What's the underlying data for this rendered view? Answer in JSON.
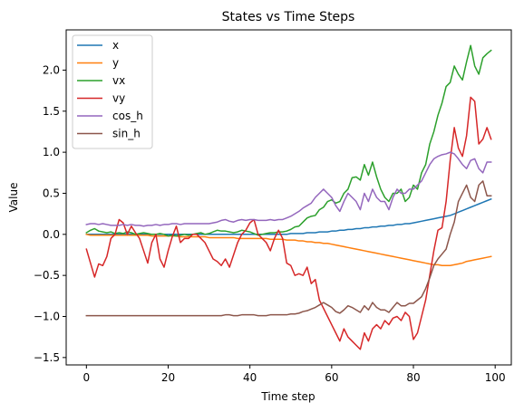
{
  "chart_data": {
    "type": "line",
    "title": "States vs Time Steps",
    "xlabel": "Time step",
    "ylabel": "Value",
    "xlim": [
      -4.95,
      103.95
    ],
    "ylim": [
      -1.59,
      2.49
    ],
    "xticks": [
      0,
      20,
      40,
      60,
      80,
      100
    ],
    "yticks": [
      -1.5,
      -1.0,
      -0.5,
      0.0,
      0.5,
      1.0,
      1.5,
      2.0
    ],
    "ytick_labels": [
      "−1.5",
      "−1.0",
      "−0.5",
      "0.0",
      "0.5",
      "1.0",
      "1.5",
      "2.0"
    ],
    "grid": false,
    "legend_position": "top-left",
    "series": [
      {
        "name": "x",
        "color": "#1f77b4",
        "values": [
          0.0,
          0.0,
          0.0,
          0.0,
          0.0,
          0.0,
          0.0,
          0.0,
          0.0,
          0.0,
          0.0,
          0.0,
          0.0,
          0.0,
          0.0,
          0.0,
          0.0,
          0.0,
          0.0,
          0.0,
          0.0,
          0.0,
          0.0,
          0.0,
          0.0,
          0.0,
          0.0,
          0.0,
          0.0,
          0.0,
          0.0,
          0.0,
          0.0,
          0.0,
          0.0,
          0.0,
          0.0,
          0.0,
          0.0,
          0.0,
          0.0,
          0.0,
          0.0,
          0.0,
          0.0,
          0.0,
          0.0,
          0.0,
          0.0,
          0.0,
          0.01,
          0.01,
          0.01,
          0.01,
          0.02,
          0.02,
          0.02,
          0.03,
          0.03,
          0.03,
          0.04,
          0.04,
          0.05,
          0.05,
          0.06,
          0.06,
          0.07,
          0.07,
          0.08,
          0.08,
          0.09,
          0.09,
          0.1,
          0.1,
          0.11,
          0.11,
          0.12,
          0.12,
          0.13,
          0.13,
          0.14,
          0.15,
          0.16,
          0.17,
          0.18,
          0.19,
          0.2,
          0.21,
          0.22,
          0.23,
          0.25,
          0.27,
          0.29,
          0.31,
          0.33,
          0.35,
          0.37,
          0.39,
          0.41,
          0.43
        ]
      },
      {
        "name": "y",
        "color": "#ff7f0e",
        "values": [
          0.0,
          -0.01,
          -0.01,
          -0.01,
          -0.01,
          -0.01,
          -0.01,
          -0.01,
          -0.01,
          -0.01,
          -0.01,
          -0.01,
          -0.01,
          -0.01,
          -0.01,
          -0.01,
          -0.02,
          -0.02,
          -0.02,
          -0.02,
          -0.02,
          -0.02,
          -0.02,
          -0.03,
          -0.03,
          -0.03,
          -0.03,
          -0.03,
          -0.03,
          -0.03,
          -0.04,
          -0.04,
          -0.04,
          -0.04,
          -0.04,
          -0.04,
          -0.04,
          -0.05,
          -0.05,
          -0.05,
          -0.05,
          -0.05,
          -0.05,
          -0.05,
          -0.05,
          -0.06,
          -0.06,
          -0.06,
          -0.06,
          -0.07,
          -0.07,
          -0.07,
          -0.08,
          -0.08,
          -0.09,
          -0.09,
          -0.1,
          -0.1,
          -0.11,
          -0.11,
          -0.12,
          -0.13,
          -0.14,
          -0.15,
          -0.16,
          -0.17,
          -0.18,
          -0.19,
          -0.2,
          -0.21,
          -0.22,
          -0.23,
          -0.24,
          -0.25,
          -0.26,
          -0.27,
          -0.28,
          -0.29,
          -0.3,
          -0.31,
          -0.32,
          -0.33,
          -0.34,
          -0.35,
          -0.36,
          -0.37,
          -0.37,
          -0.38,
          -0.38,
          -0.38,
          -0.37,
          -0.36,
          -0.35,
          -0.33,
          -0.32,
          -0.31,
          -0.3,
          -0.29,
          -0.28,
          -0.27
        ]
      },
      {
        "name": "vx",
        "color": "#2ca02c",
        "values": [
          0.02,
          0.05,
          0.07,
          0.04,
          0.03,
          0.02,
          0.03,
          0.01,
          0.02,
          0.01,
          0.03,
          0.02,
          0.0,
          0.01,
          0.02,
          0.01,
          0.0,
          0.0,
          0.01,
          0.0,
          -0.02,
          -0.01,
          -0.02,
          -0.01,
          0.0,
          -0.01,
          0.0,
          0.01,
          0.02,
          0.0,
          0.01,
          0.03,
          0.05,
          0.04,
          0.04,
          0.03,
          0.02,
          0.03,
          0.05,
          0.04,
          0.03,
          0.01,
          -0.01,
          0.0,
          0.01,
          0.02,
          0.02,
          0.03,
          0.03,
          0.04,
          0.06,
          0.09,
          0.1,
          0.15,
          0.2,
          0.22,
          0.23,
          0.3,
          0.33,
          0.4,
          0.42,
          0.38,
          0.4,
          0.5,
          0.55,
          0.69,
          0.7,
          0.66,
          0.85,
          0.72,
          0.88,
          0.7,
          0.55,
          0.45,
          0.4,
          0.5,
          0.5,
          0.55,
          0.4,
          0.45,
          0.6,
          0.55,
          0.75,
          0.85,
          1.1,
          1.25,
          1.45,
          1.6,
          1.8,
          1.85,
          2.05,
          1.95,
          1.88,
          2.1,
          2.3,
          2.05,
          1.95,
          2.15,
          2.2,
          2.24
        ]
      },
      {
        "name": "vy",
        "color": "#d62728",
        "values": [
          -0.18,
          -0.35,
          -0.52,
          -0.36,
          -0.38,
          -0.27,
          -0.05,
          0.0,
          0.18,
          0.14,
          0.0,
          0.1,
          0.02,
          -0.05,
          -0.2,
          -0.35,
          -0.1,
          0.0,
          -0.3,
          -0.4,
          -0.2,
          -0.03,
          0.1,
          -0.1,
          -0.05,
          -0.05,
          0.0,
          0.0,
          -0.05,
          -0.1,
          -0.2,
          -0.3,
          -0.33,
          -0.38,
          -0.3,
          -0.4,
          -0.25,
          -0.1,
          0.0,
          0.05,
          0.14,
          0.18,
          0.0,
          -0.05,
          -0.1,
          -0.2,
          -0.05,
          0.05,
          -0.05,
          -0.35,
          -0.38,
          -0.5,
          -0.48,
          -0.5,
          -0.4,
          -0.6,
          -0.55,
          -0.8,
          -0.9,
          -1.0,
          -1.1,
          -1.2,
          -1.3,
          -1.15,
          -1.25,
          -1.3,
          -1.35,
          -1.4,
          -1.2,
          -1.3,
          -1.15,
          -1.1,
          -1.15,
          -1.05,
          -1.1,
          -1.02,
          -1.0,
          -1.05,
          -0.95,
          -1.0,
          -1.28,
          -1.2,
          -1.0,
          -0.8,
          -0.5,
          -0.2,
          0.05,
          0.08,
          0.4,
          0.9,
          1.3,
          1.05,
          0.95,
          1.2,
          1.67,
          1.62,
          1.1,
          1.16,
          1.3,
          1.16
        ]
      },
      {
        "name": "cos_h",
        "color": "#9467bd",
        "values": [
          0.12,
          0.13,
          0.13,
          0.12,
          0.13,
          0.12,
          0.11,
          0.11,
          0.11,
          0.12,
          0.11,
          0.12,
          0.11,
          0.11,
          0.1,
          0.11,
          0.11,
          0.12,
          0.11,
          0.12,
          0.12,
          0.13,
          0.13,
          0.12,
          0.13,
          0.13,
          0.13,
          0.13,
          0.13,
          0.13,
          0.13,
          0.14,
          0.15,
          0.17,
          0.18,
          0.16,
          0.15,
          0.17,
          0.18,
          0.17,
          0.18,
          0.18,
          0.17,
          0.17,
          0.17,
          0.18,
          0.17,
          0.18,
          0.18,
          0.2,
          0.22,
          0.25,
          0.28,
          0.32,
          0.35,
          0.38,
          0.45,
          0.5,
          0.55,
          0.5,
          0.45,
          0.35,
          0.28,
          0.4,
          0.5,
          0.45,
          0.4,
          0.3,
          0.5,
          0.4,
          0.55,
          0.45,
          0.4,
          0.4,
          0.3,
          0.45,
          0.55,
          0.5,
          0.5,
          0.55,
          0.55,
          0.6,
          0.65,
          0.75,
          0.85,
          0.92,
          0.95,
          0.97,
          0.98,
          1.0,
          0.98,
          0.92,
          0.85,
          0.8,
          0.9,
          0.92,
          0.8,
          0.75,
          0.88,
          0.88
        ]
      },
      {
        "name": "sin_h",
        "color": "#8c564b",
        "values": [
          -0.99,
          -0.99,
          -0.99,
          -0.99,
          -0.99,
          -0.99,
          -0.99,
          -0.99,
          -0.99,
          -0.99,
          -0.99,
          -0.99,
          -0.99,
          -0.99,
          -0.99,
          -0.99,
          -0.99,
          -0.99,
          -0.99,
          -0.99,
          -0.99,
          -0.99,
          -0.99,
          -0.99,
          -0.99,
          -0.99,
          -0.99,
          -0.99,
          -0.99,
          -0.99,
          -0.99,
          -0.99,
          -0.99,
          -0.99,
          -0.98,
          -0.98,
          -0.99,
          -0.99,
          -0.98,
          -0.98,
          -0.98,
          -0.98,
          -0.99,
          -0.99,
          -0.99,
          -0.98,
          -0.98,
          -0.98,
          -0.98,
          -0.98,
          -0.97,
          -0.97,
          -0.96,
          -0.94,
          -0.93,
          -0.91,
          -0.89,
          -0.86,
          -0.83,
          -0.86,
          -0.89,
          -0.94,
          -0.96,
          -0.92,
          -0.87,
          -0.89,
          -0.92,
          -0.95,
          -0.87,
          -0.92,
          -0.83,
          -0.89,
          -0.92,
          -0.92,
          -0.95,
          -0.89,
          -0.83,
          -0.87,
          -0.87,
          -0.84,
          -0.84,
          -0.8,
          -0.76,
          -0.66,
          -0.53,
          -0.38,
          -0.3,
          -0.24,
          -0.18,
          0.0,
          0.15,
          0.4,
          0.5,
          0.6,
          0.45,
          0.4,
          0.6,
          0.65,
          0.47,
          0.47
        ]
      }
    ]
  }
}
